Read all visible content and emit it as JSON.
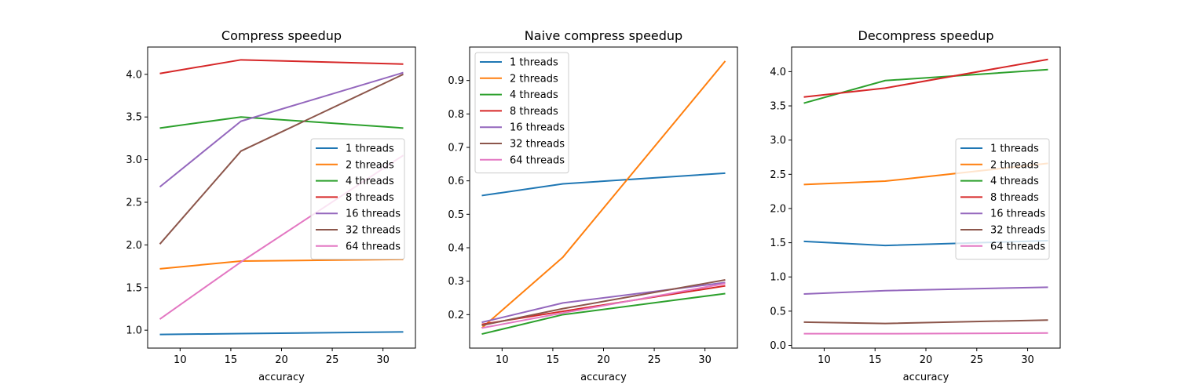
{
  "chart_data": [
    {
      "type": "line",
      "title": "Compress speedup",
      "xlabel": "accuracy",
      "ylabel": "",
      "x": [
        8,
        16,
        32
      ],
      "xlim": [
        6.8,
        33.2
      ],
      "ylim": [
        0.79,
        4.32
      ],
      "xticks": [
        10,
        15,
        20,
        25,
        30
      ],
      "yticks": [
        1.0,
        1.5,
        2.0,
        2.5,
        3.0,
        3.5,
        4.0
      ],
      "legend": "center-right",
      "series": [
        {
          "name": "1 threads",
          "color": "#1f77b4",
          "values": [
            0.95,
            0.96,
            0.98
          ]
        },
        {
          "name": "2 threads",
          "color": "#ff7f0e",
          "values": [
            1.72,
            1.81,
            1.83
          ]
        },
        {
          "name": "4 threads",
          "color": "#2ca02c",
          "values": [
            3.37,
            3.5,
            3.37
          ]
        },
        {
          "name": "8 threads",
          "color": "#d62728",
          "values": [
            4.01,
            4.17,
            4.12
          ]
        },
        {
          "name": "16 threads",
          "color": "#9467bd",
          "values": [
            2.68,
            3.45,
            4.02
          ]
        },
        {
          "name": "32 threads",
          "color": "#8c564b",
          "values": [
            2.01,
            3.1,
            4.0
          ]
        },
        {
          "name": "64 threads",
          "color": "#e377c2",
          "values": [
            1.13,
            1.8,
            3.05
          ]
        }
      ]
    },
    {
      "type": "line",
      "title": "Naive compress speedup",
      "xlabel": "accuracy",
      "ylabel": "",
      "x": [
        8,
        16,
        32
      ],
      "xlim": [
        6.8,
        33.2
      ],
      "ylim": [
        0.1,
        1.0
      ],
      "xticks": [
        10,
        15,
        20,
        25,
        30
      ],
      "yticks": [
        0.2,
        0.3,
        0.4,
        0.5,
        0.6,
        0.7,
        0.8,
        0.9
      ],
      "legend": "upper-left",
      "series": [
        {
          "name": "1 threads",
          "color": "#1f77b4",
          "values": [
            0.556,
            0.591,
            0.623
          ]
        },
        {
          "name": "2 threads",
          "color": "#ff7f0e",
          "values": [
            0.16,
            0.372,
            0.958
          ]
        },
        {
          "name": "4 threads",
          "color": "#2ca02c",
          "values": [
            0.142,
            0.2,
            0.263
          ]
        },
        {
          "name": "8 threads",
          "color": "#d62728",
          "values": [
            0.171,
            0.21,
            0.286
          ]
        },
        {
          "name": "16 threads",
          "color": "#9467bd",
          "values": [
            0.177,
            0.235,
            0.296
          ]
        },
        {
          "name": "32 threads",
          "color": "#8c564b",
          "values": [
            0.168,
            0.218,
            0.304
          ]
        },
        {
          "name": "64 threads",
          "color": "#e377c2",
          "values": [
            0.16,
            0.205,
            0.293
          ]
        }
      ]
    },
    {
      "type": "line",
      "title": "Decompress speedup",
      "xlabel": "accuracy",
      "ylabel": "",
      "x": [
        8,
        16,
        32
      ],
      "xlim": [
        6.8,
        33.2
      ],
      "ylim": [
        -0.04,
        4.36
      ],
      "xticks": [
        10,
        15,
        20,
        25,
        30
      ],
      "yticks": [
        0.0,
        0.5,
        1.0,
        1.5,
        2.0,
        2.5,
        3.0,
        3.5,
        4.0
      ],
      "legend": "center-right",
      "series": [
        {
          "name": "1 threads",
          "color": "#1f77b4",
          "values": [
            1.52,
            1.46,
            1.53
          ]
        },
        {
          "name": "2 threads",
          "color": "#ff7f0e",
          "values": [
            2.35,
            2.4,
            2.66
          ]
        },
        {
          "name": "4 threads",
          "color": "#2ca02c",
          "values": [
            3.54,
            3.87,
            4.03
          ]
        },
        {
          "name": "8 threads",
          "color": "#d62728",
          "values": [
            3.63,
            3.76,
            4.18
          ]
        },
        {
          "name": "16 threads",
          "color": "#9467bd",
          "values": [
            0.75,
            0.8,
            0.85
          ]
        },
        {
          "name": "32 threads",
          "color": "#8c564b",
          "values": [
            0.34,
            0.32,
            0.37
          ]
        },
        {
          "name": "64 threads",
          "color": "#e377c2",
          "values": [
            0.17,
            0.17,
            0.18
          ]
        }
      ]
    }
  ]
}
